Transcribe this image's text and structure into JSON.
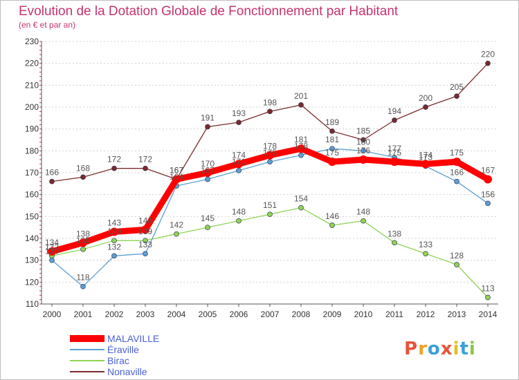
{
  "title": "Evolution de la Dotation Globale de Fonctionnement par Habitant",
  "subtitle": "(en € et par an)",
  "logo": {
    "text": "Proxiti",
    "colors": [
      "#e8543a",
      "#f0a020",
      "#3aa0d8",
      "#e8543a",
      "#e0c020",
      "#3aa0d8",
      "#8cc63e"
    ]
  },
  "chart_data": {
    "type": "line",
    "x": [
      2000,
      2001,
      2002,
      2003,
      2004,
      2005,
      2006,
      2007,
      2008,
      2009,
      2010,
      2011,
      2012,
      2013,
      2014
    ],
    "ylim": [
      110,
      230
    ],
    "yticks": [
      110,
      120,
      130,
      140,
      150,
      160,
      170,
      180,
      190,
      200,
      210,
      220,
      230
    ],
    "grid": "horizontal dashed",
    "legend_position": "bottom-left",
    "series": [
      {
        "name": "MALAVILLE",
        "color": "#ff0000",
        "values": [
          134,
          138,
          143,
          144,
          167,
          170,
          174,
          178,
          181,
          175,
          176,
          175,
          174,
          175,
          167
        ]
      },
      {
        "name": "Éraville",
        "color": "#5d9fd3",
        "values": [
          130,
          118,
          132,
          133,
          164,
          167,
          171,
          175,
          178,
          181,
          180,
          177,
          173,
          166,
          156
        ]
      },
      {
        "name": "Birac",
        "color": "#8ed455",
        "values": [
          132,
          135,
          139,
          139,
          142,
          145,
          148,
          151,
          154,
          146,
          148,
          138,
          133,
          128,
          113
        ]
      },
      {
        "name": "Nonaville",
        "color": "#7a2a2a",
        "values": [
          166,
          168,
          172,
          172,
          167,
          191,
          193,
          198,
          201,
          189,
          185,
          194,
          200,
          205,
          220
        ]
      }
    ]
  }
}
